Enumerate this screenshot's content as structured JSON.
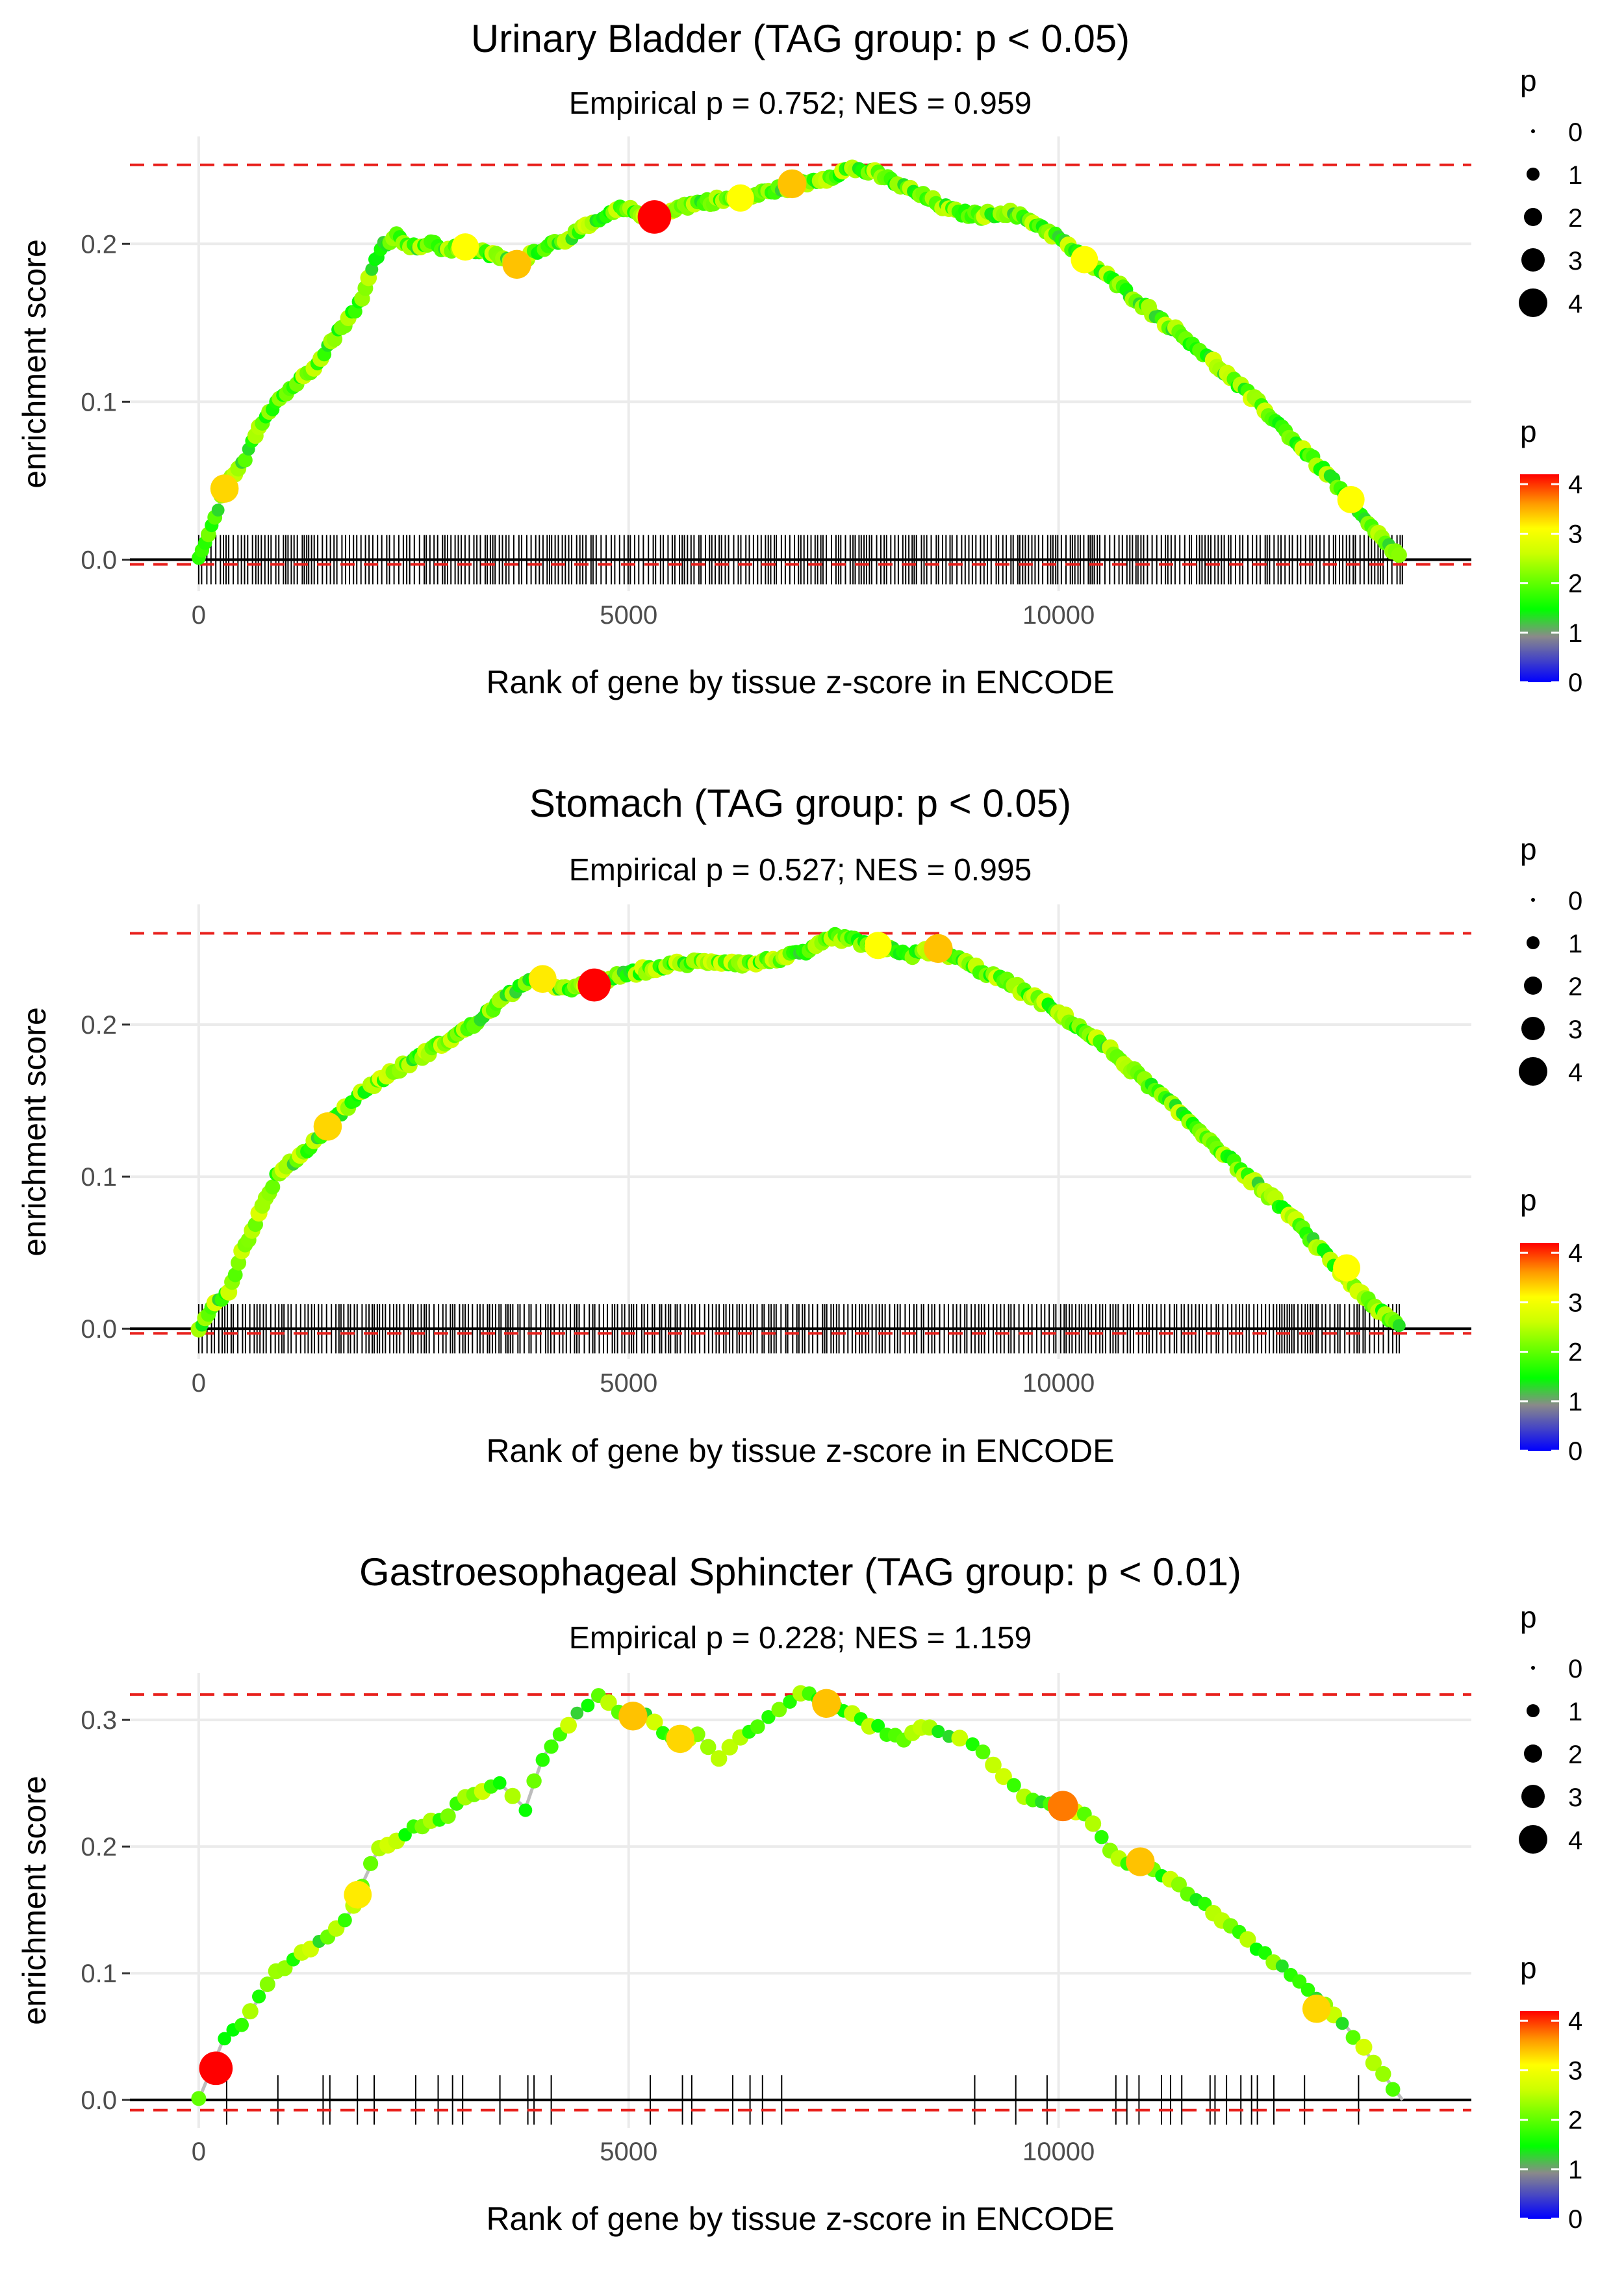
{
  "chart_data": [
    {
      "type": "line",
      "title": "Urinary Bladder (TAG group: p < 0.05)",
      "subtitle": "Empirical p = 0.752; NES = 0.959",
      "xlabel": "Rank of gene by tissue z-score in ENCODE",
      "ylabel": "enrichment score",
      "xlim": [
        -800,
        14800
      ],
      "ylim": [
        -0.02,
        0.268
      ],
      "x_ticks": [
        0,
        5000,
        10000
      ],
      "x_tick_labels": [
        "0",
        "5000",
        "10000"
      ],
      "y_ticks": [
        0.0,
        0.1,
        0.2
      ],
      "y_tick_labels": [
        "0.0",
        "0.1",
        "0.2"
      ],
      "hlines": {
        "max": 0.25,
        "min": -0.003,
        "zero": 0.0
      },
      "curve": [
        [
          0,
          0
        ],
        [
          150,
          0.02
        ],
        [
          300,
          0.045
        ],
        [
          500,
          0.06
        ],
        [
          700,
          0.085
        ],
        [
          900,
          0.1
        ],
        [
          1100,
          0.11
        ],
        [
          1300,
          0.12
        ],
        [
          1500,
          0.135
        ],
        [
          1700,
          0.15
        ],
        [
          1900,
          0.165
        ],
        [
          2050,
          0.19
        ],
        [
          2150,
          0.2
        ],
        [
          2300,
          0.205
        ],
        [
          2500,
          0.198
        ],
        [
          2700,
          0.2
        ],
        [
          2900,
          0.196
        ],
        [
          3100,
          0.198
        ],
        [
          3300,
          0.194
        ],
        [
          3500,
          0.192
        ],
        [
          3700,
          0.187
        ],
        [
          3900,
          0.195
        ],
        [
          4100,
          0.2
        ],
        [
          4300,
          0.204
        ],
        [
          4500,
          0.21
        ],
        [
          4700,
          0.216
        ],
        [
          4900,
          0.222
        ],
        [
          5100,
          0.22
        ],
        [
          5300,
          0.217
        ],
        [
          5500,
          0.222
        ],
        [
          5800,
          0.226
        ],
        [
          6100,
          0.228
        ],
        [
          6400,
          0.23
        ],
        [
          6700,
          0.234
        ],
        [
          7000,
          0.238
        ],
        [
          7300,
          0.242
        ],
        [
          7600,
          0.248
        ],
        [
          7900,
          0.244
        ],
        [
          8200,
          0.236
        ],
        [
          8500,
          0.228
        ],
        [
          8800,
          0.22
        ],
        [
          9100,
          0.218
        ],
        [
          9400,
          0.22
        ],
        [
          9700,
          0.214
        ],
        [
          10000,
          0.204
        ],
        [
          10300,
          0.19
        ],
        [
          10600,
          0.178
        ],
        [
          10900,
          0.165
        ],
        [
          11200,
          0.152
        ],
        [
          11600,
          0.135
        ],
        [
          12000,
          0.115
        ],
        [
          12400,
          0.095
        ],
        [
          12800,
          0.072
        ],
        [
          13200,
          0.05
        ],
        [
          13600,
          0.022
        ],
        [
          14000,
          0.0
        ]
      ],
      "highlight_points": [
        {
          "x": 300,
          "y": 0.045,
          "p": 3.2
        },
        {
          "x": 3100,
          "y": 0.198,
          "p": 3.0
        },
        {
          "x": 3700,
          "y": 0.187,
          "p": 3.3
        },
        {
          "x": 5300,
          "y": 0.217,
          "p": 4.2
        },
        {
          "x": 6300,
          "y": 0.229,
          "p": 3.0
        },
        {
          "x": 6900,
          "y": 0.238,
          "p": 3.3
        },
        {
          "x": 10300,
          "y": 0.19,
          "p": 3.0
        },
        {
          "x": 13400,
          "y": 0.038,
          "p": 3.0
        }
      ],
      "gene_ticks_xmax": 14000,
      "rug_density": 1.0
    },
    {
      "type": "line",
      "title": "Stomach (TAG group: p < 0.05)",
      "subtitle": "Empirical p = 0.527; NES = 0.995",
      "xlabel": "Rank of gene by tissue z-score in ENCODE",
      "ylabel": "enrichment score",
      "xlim": [
        -800,
        14800
      ],
      "ylim": [
        -0.02,
        0.279
      ],
      "x_ticks": [
        0,
        5000,
        10000
      ],
      "x_tick_labels": [
        "0",
        "5000",
        "10000"
      ],
      "y_ticks": [
        0.0,
        0.1,
        0.2
      ],
      "y_tick_labels": [
        "0.0",
        "0.1",
        "0.2"
      ],
      "hlines": {
        "max": 0.26,
        "min": -0.003,
        "zero": 0.0
      },
      "curve": [
        [
          0,
          0
        ],
        [
          150,
          0.015
        ],
        [
          350,
          0.025
        ],
        [
          500,
          0.05
        ],
        [
          700,
          0.075
        ],
        [
          900,
          0.1
        ],
        [
          1100,
          0.11
        ],
        [
          1300,
          0.12
        ],
        [
          1500,
          0.133
        ],
        [
          1700,
          0.145
        ],
        [
          2000,
          0.16
        ],
        [
          2300,
          0.17
        ],
        [
          2600,
          0.18
        ],
        [
          2900,
          0.19
        ],
        [
          3200,
          0.2
        ],
        [
          3500,
          0.215
        ],
        [
          3800,
          0.228
        ],
        [
          4000,
          0.23
        ],
        [
          4300,
          0.222
        ],
        [
          4600,
          0.228
        ],
        [
          4900,
          0.232
        ],
        [
          5200,
          0.236
        ],
        [
          5600,
          0.24
        ],
        [
          6000,
          0.242
        ],
        [
          6400,
          0.24
        ],
        [
          6800,
          0.244
        ],
        [
          7100,
          0.248
        ],
        [
          7400,
          0.258
        ],
        [
          7700,
          0.254
        ],
        [
          8000,
          0.25
        ],
        [
          8300,
          0.246
        ],
        [
          8600,
          0.25
        ],
        [
          9000,
          0.238
        ],
        [
          9400,
          0.228
        ],
        [
          9800,
          0.215
        ],
        [
          10200,
          0.2
        ],
        [
          10600,
          0.183
        ],
        [
          11000,
          0.163
        ],
        [
          11400,
          0.143
        ],
        [
          11800,
          0.122
        ],
        [
          12200,
          0.1
        ],
        [
          12600,
          0.08
        ],
        [
          13000,
          0.055
        ],
        [
          13400,
          0.03
        ],
        [
          13800,
          0.008
        ],
        [
          14000,
          0.0
        ]
      ],
      "highlight_points": [
        {
          "x": 1500,
          "y": 0.133,
          "p": 3.2
        },
        {
          "x": 4000,
          "y": 0.23,
          "p": 3.1
        },
        {
          "x": 4600,
          "y": 0.226,
          "p": 4.1
        },
        {
          "x": 7900,
          "y": 0.252,
          "p": 3.0
        },
        {
          "x": 8600,
          "y": 0.25,
          "p": 3.3
        },
        {
          "x": 13350,
          "y": 0.04,
          "p": 3.0
        }
      ],
      "gene_ticks_xmax": 14000,
      "rug_density": 1.0
    },
    {
      "type": "line",
      "title": "Gastroesophageal Sphincter (TAG group: p < 0.01)",
      "subtitle": "Empirical p = 0.228; NES = 1.159",
      "xlabel": "Rank of gene by tissue z-score in ENCODE",
      "ylabel": "enrichment score",
      "xlim": [
        -800,
        14800
      ],
      "ylim": [
        -0.022,
        0.337
      ],
      "x_ticks": [
        0,
        5000,
        10000
      ],
      "x_tick_labels": [
        "0",
        "5000",
        "10000"
      ],
      "y_ticks": [
        0.0,
        0.1,
        0.2,
        0.3
      ],
      "y_tick_labels": [
        "0.0",
        "0.1",
        "0.2",
        "0.3"
      ],
      "hlines": {
        "max": 0.32,
        "min": -0.008,
        "zero": 0.0
      },
      "curve": [
        [
          0,
          0
        ],
        [
          150,
          0.025
        ],
        [
          300,
          0.05
        ],
        [
          500,
          0.06
        ],
        [
          700,
          0.08
        ],
        [
          900,
          0.1
        ],
        [
          1100,
          0.11
        ],
        [
          1300,
          0.12
        ],
        [
          1500,
          0.13
        ],
        [
          1700,
          0.14
        ],
        [
          1900,
          0.17
        ],
        [
          2100,
          0.2
        ],
        [
          2300,
          0.205
        ],
        [
          2500,
          0.215
        ],
        [
          2700,
          0.22
        ],
        [
          2900,
          0.225
        ],
        [
          3100,
          0.24
        ],
        [
          3300,
          0.245
        ],
        [
          3500,
          0.25
        ],
        [
          3650,
          0.24
        ],
        [
          3800,
          0.23
        ],
        [
          4000,
          0.27
        ],
        [
          4200,
          0.29
        ],
        [
          4400,
          0.305
        ],
        [
          4650,
          0.32
        ],
        [
          5000,
          0.3
        ],
        [
          5200,
          0.305
        ],
        [
          5400,
          0.29
        ],
        [
          5600,
          0.285
        ],
        [
          5800,
          0.288
        ],
        [
          6050,
          0.27
        ],
        [
          6300,
          0.285
        ],
        [
          6500,
          0.295
        ],
        [
          6750,
          0.31
        ],
        [
          7000,
          0.32
        ],
        [
          7200,
          0.318
        ],
        [
          7400,
          0.31
        ],
        [
          7700,
          0.3
        ],
        [
          8000,
          0.29
        ],
        [
          8200,
          0.285
        ],
        [
          8400,
          0.295
        ],
        [
          8600,
          0.29
        ],
        [
          8850,
          0.285
        ],
        [
          9000,
          0.282
        ],
        [
          9600,
          0.24
        ],
        [
          10000,
          0.232
        ],
        [
          10300,
          0.225
        ],
        [
          10700,
          0.19
        ],
        [
          11000,
          0.185
        ],
        [
          11300,
          0.175
        ],
        [
          11800,
          0.148
        ],
        [
          12200,
          0.125
        ],
        [
          12600,
          0.105
        ],
        [
          13000,
          0.08
        ],
        [
          13300,
          0.062
        ],
        [
          13550,
          0.04
        ],
        [
          14000,
          0.0
        ]
      ],
      "highlight_points": [
        {
          "x": 200,
          "y": 0.025,
          "p": 4.2
        },
        {
          "x": 1850,
          "y": 0.162,
          "p": 3.1
        },
        {
          "x": 5050,
          "y": 0.303,
          "p": 3.3
        },
        {
          "x": 5600,
          "y": 0.285,
          "p": 3.2
        },
        {
          "x": 7300,
          "y": 0.313,
          "p": 3.3
        },
        {
          "x": 10050,
          "y": 0.232,
          "p": 3.6
        },
        {
          "x": 10950,
          "y": 0.188,
          "p": 3.3
        },
        {
          "x": 13000,
          "y": 0.072,
          "p": 3.2
        }
      ],
      "gene_ticks_xmax": 13500,
      "rug_density": 0.22
    }
  ],
  "legend": {
    "size_title": "p",
    "size_labels": [
      "0",
      "1",
      "2",
      "3",
      "4"
    ],
    "color_title": "p",
    "color_labels": [
      "4",
      "3",
      "2",
      "1",
      "0"
    ]
  },
  "colors": {
    "reference_line": "#e8201c",
    "gene_tick": "#000000",
    "gridline": "#ebebeb",
    "grey_path": "#bdbdbd",
    "scale_0": "#0000ff",
    "scale_1": "#8a8a8a",
    "scale_1_5": "#00ff00",
    "scale_3": "#ffff00",
    "scale_3_5": "#ff9900",
    "scale_4": "#ff0000"
  }
}
